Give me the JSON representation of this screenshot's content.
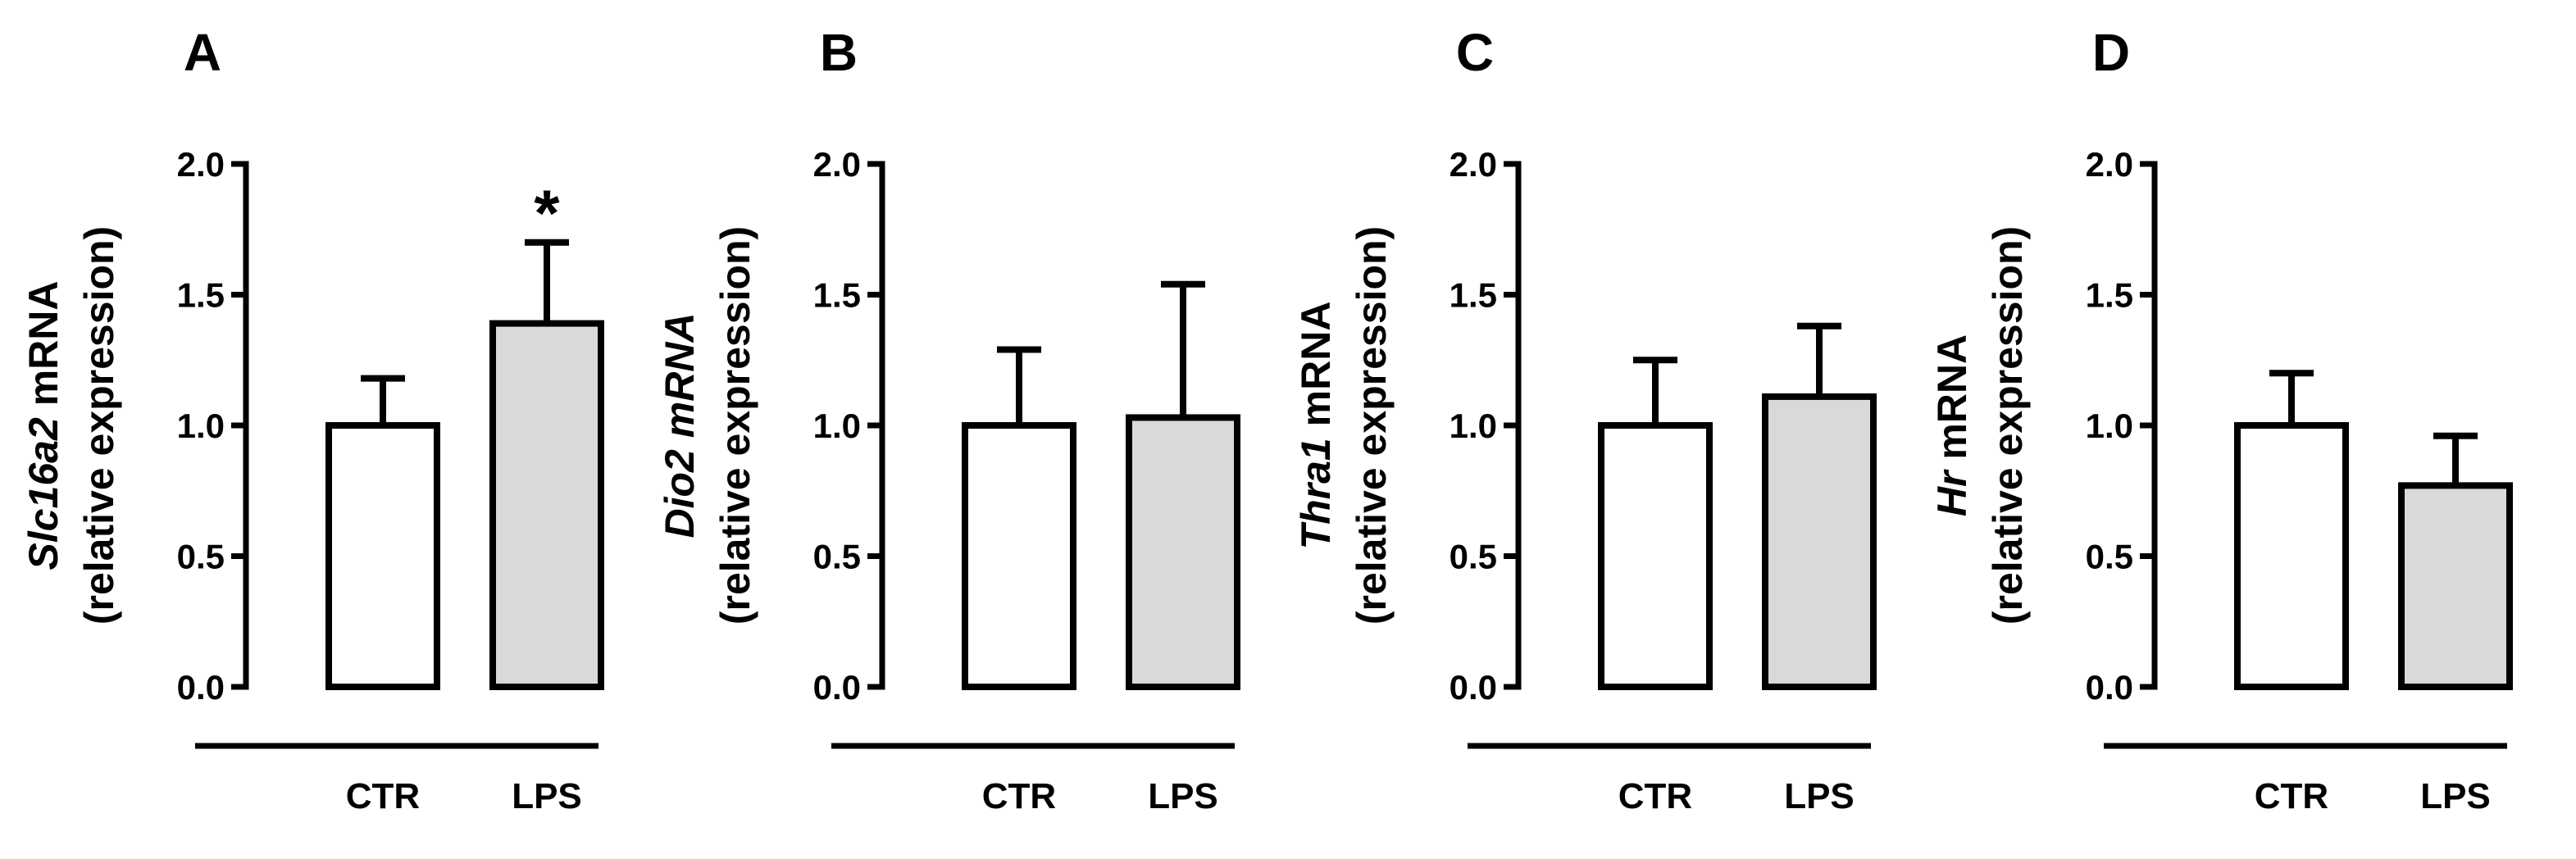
{
  "chart_data": [
    {
      "type": "bar",
      "panel": "A",
      "title": "A",
      "ylabel_gene": "Slc16a2",
      "ylabel_rest": " mRNA",
      "ylabel_line2": "(relative expression)",
      "categories": [
        "CTR",
        "LPS"
      ],
      "values": [
        1.0,
        1.39
      ],
      "errors": [
        0.18,
        0.31
      ],
      "fill_colors": [
        "#ffffff",
        "#d9d9d9"
      ],
      "significance": [
        "",
        "*"
      ],
      "ylim": [
        0,
        2.0
      ],
      "yticks": [
        "0.0",
        "0.5",
        "1.0",
        "1.5",
        "2.0"
      ]
    },
    {
      "type": "bar",
      "panel": "B",
      "title": "B",
      "ylabel_gene": "Dio2",
      "ylabel_rest": " mRNA",
      "ylabel_rest_italic": true,
      "ylabel_line2": "(relative expression)",
      "categories": [
        "CTR",
        "LPS"
      ],
      "values": [
        1.0,
        1.03
      ],
      "errors": [
        0.29,
        0.51
      ],
      "fill_colors": [
        "#ffffff",
        "#d9d9d9"
      ],
      "significance": [
        "",
        ""
      ],
      "ylim": [
        0,
        2.0
      ],
      "yticks": [
        "0.0",
        "0.5",
        "1.0",
        "1.5",
        "2.0"
      ]
    },
    {
      "type": "bar",
      "panel": "C",
      "title": "C",
      "ylabel_gene": "Thra1",
      "ylabel_rest": " mRNA",
      "ylabel_line2": "(relative expression)",
      "categories": [
        "CTR",
        "LPS"
      ],
      "values": [
        1.0,
        1.11
      ],
      "errors": [
        0.25,
        0.27
      ],
      "fill_colors": [
        "#ffffff",
        "#d9d9d9"
      ],
      "significance": [
        "",
        ""
      ],
      "ylim": [
        0,
        2.0
      ],
      "yticks": [
        "0.0",
        "0.5",
        "1.0",
        "1.5",
        "2.0"
      ]
    },
    {
      "type": "bar",
      "panel": "D",
      "title": "D",
      "ylabel_gene": "Hr",
      "ylabel_rest": " mRNA",
      "ylabel_line2": "(relative expression)",
      "categories": [
        "CTR",
        "LPS"
      ],
      "values": [
        1.0,
        0.77
      ],
      "errors": [
        0.2,
        0.19
      ],
      "fill_colors": [
        "#ffffff",
        "#d9d9d9"
      ],
      "significance": [
        "",
        ""
      ],
      "ylim": [
        0,
        2.0
      ],
      "yticks": [
        "0.0",
        "0.5",
        "1.0",
        "1.5",
        "2.0"
      ]
    }
  ]
}
